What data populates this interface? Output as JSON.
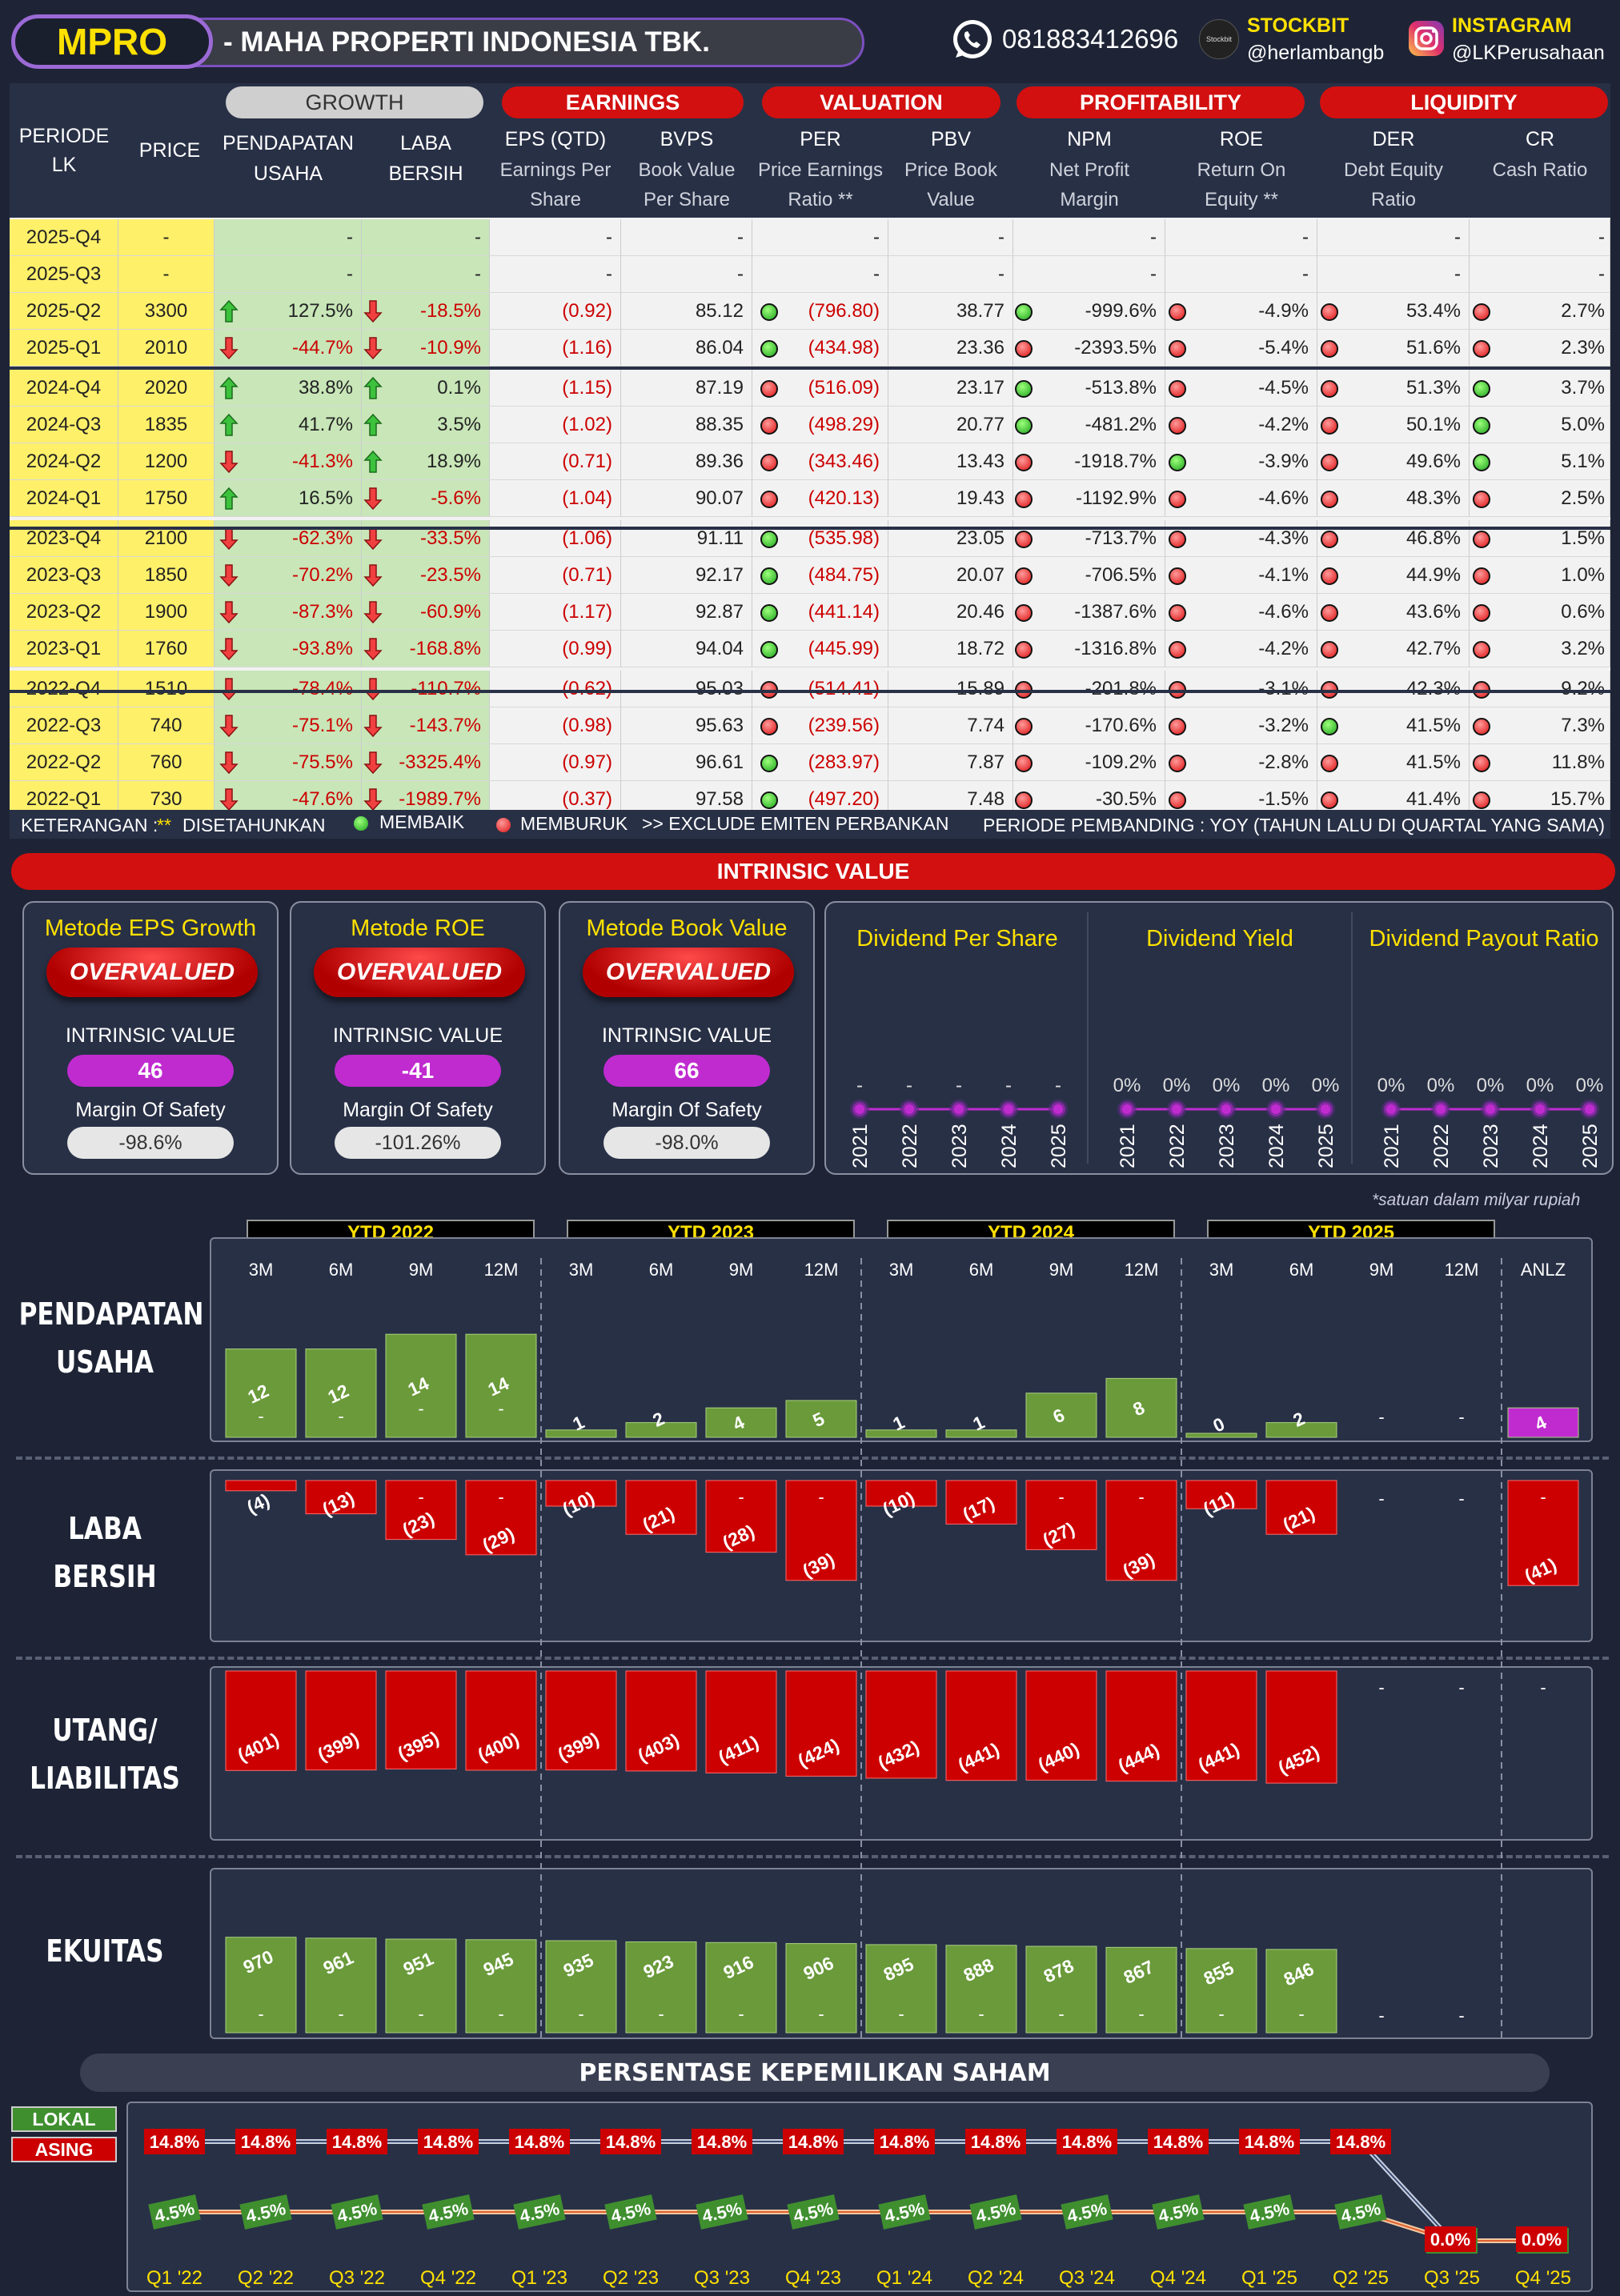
{
  "header": {
    "ticker": "MPRO",
    "company": "-  MAHA PROPERTI INDONESIA TBK.",
    "phone": "081883412696",
    "stockbit_label": "STOCKBIT",
    "stockbit_handle": "@herlambangb",
    "stockbit_logo": "Stockbit",
    "instagram_label": "INSTAGRAM",
    "instagram_handle": "@LKPerusahaan"
  },
  "table": {
    "groups": {
      "growth": "GROWTH",
      "earnings": "EARNINGS",
      "valuation": "VALUATION",
      "profitability": "PROFITABILITY",
      "liquidity": "LIQUIDITY"
    },
    "cols": {
      "periode": "PERIODE\nLK",
      "price": "PRICE",
      "pend": "PENDAPATAN\nUSAHA",
      "laba": "LABA\nBERSIH",
      "eps": "EPS (QTD)",
      "eps_sub": "Earnings Per\nShare",
      "bvps": "BVPS",
      "bvps_sub": "Book Value\nPer Share",
      "per": "PER",
      "per_sub": "Price Earnings\nRatio **",
      "pbv": "PBV",
      "pbv_sub": "Price Book\nValue",
      "npm": "NPM",
      "npm_sub": "Net Profit\nMargin",
      "roe": "ROE",
      "roe_sub": "Return On\nEquity **",
      "der": "DER",
      "der_sub": "Debt Equity\nRatio",
      "cr": "CR",
      "cr_sub": "Cash Ratio"
    },
    "rows": [
      {
        "p": "2025-Q4",
        "price": "-",
        "pend": "-",
        "pa": "",
        "laba": "-",
        "la": "",
        "eps": "-",
        "bvps": "-",
        "bd": "",
        "per": "-",
        "pbv": "-",
        "pd": "",
        "npm": "-",
        "nd": "",
        "roe": "-",
        "rd": "",
        "der": "-",
        "dd": "",
        "cr": "-"
      },
      {
        "p": "2025-Q3",
        "price": "-",
        "pend": "-",
        "pa": "",
        "laba": "-",
        "la": "",
        "eps": "-",
        "bvps": "-",
        "bd": "",
        "per": "-",
        "pbv": "-",
        "pd": "",
        "npm": "-",
        "nd": "",
        "roe": "-",
        "rd": "",
        "der": "-",
        "dd": "",
        "cr": "-"
      },
      {
        "p": "2025-Q2",
        "price": "3300",
        "pend": "127.5%",
        "pa": "up",
        "laba": "-18.5%",
        "la": "down",
        "eps": "(0.92)",
        "bvps": "85.12",
        "bd": "g",
        "per": "(796.80)",
        "pbv": "38.77",
        "pd": "g",
        "npm": "-999.6%",
        "nd": "r",
        "roe": "-4.9%",
        "rd": "r",
        "der": "53.4%",
        "dd": "r",
        "cr": "2.7%"
      },
      {
        "p": "2025-Q1",
        "price": "2010",
        "pend": "-44.7%",
        "pa": "down",
        "laba": "-10.9%",
        "la": "down",
        "eps": "(1.16)",
        "bvps": "86.04",
        "bd": "g",
        "per": "(434.98)",
        "pbv": "23.36",
        "pd": "r",
        "npm": "-2393.5%",
        "nd": "r",
        "roe": "-5.4%",
        "rd": "r",
        "der": "51.6%",
        "dd": "r",
        "cr": "2.3%"
      },
      {
        "p": "2024-Q4",
        "price": "2020",
        "pend": "38.8%",
        "pa": "up",
        "laba": "0.1%",
        "la": "up",
        "eps": "(1.15)",
        "bvps": "87.19",
        "bd": "r",
        "per": "(516.09)",
        "pbv": "23.17",
        "pd": "g",
        "npm": "-513.8%",
        "nd": "r",
        "roe": "-4.5%",
        "rd": "r",
        "der": "51.3%",
        "dd": "g",
        "cr": "3.7%"
      },
      {
        "p": "2024-Q3",
        "price": "1835",
        "pend": "41.7%",
        "pa": "up",
        "laba": "3.5%",
        "la": "up",
        "eps": "(1.02)",
        "bvps": "88.35",
        "bd": "r",
        "per": "(498.29)",
        "pbv": "20.77",
        "pd": "g",
        "npm": "-481.2%",
        "nd": "r",
        "roe": "-4.2%",
        "rd": "r",
        "der": "50.1%",
        "dd": "g",
        "cr": "5.0%"
      },
      {
        "p": "2024-Q2",
        "price": "1200",
        "pend": "-41.3%",
        "pa": "down",
        "laba": "18.9%",
        "la": "up",
        "eps": "(0.71)",
        "bvps": "89.36",
        "bd": "r",
        "per": "(343.46)",
        "pbv": "13.43",
        "pd": "r",
        "npm": "-1918.7%",
        "nd": "g",
        "roe": "-3.9%",
        "rd": "r",
        "der": "49.6%",
        "dd": "g",
        "cr": "5.1%"
      },
      {
        "p": "2024-Q1",
        "price": "1750",
        "pend": "16.5%",
        "pa": "up",
        "laba": "-5.6%",
        "la": "down",
        "eps": "(1.04)",
        "bvps": "90.07",
        "bd": "r",
        "per": "(420.13)",
        "pbv": "19.43",
        "pd": "r",
        "npm": "-1192.9%",
        "nd": "r",
        "roe": "-4.6%",
        "rd": "r",
        "der": "48.3%",
        "dd": "r",
        "cr": "2.5%"
      },
      {
        "p": "2023-Q4",
        "price": "2100",
        "pend": "-62.3%",
        "pa": "down",
        "laba": "-33.5%",
        "la": "down",
        "eps": "(1.06)",
        "bvps": "91.11",
        "bd": "g",
        "per": "(535.98)",
        "pbv": "23.05",
        "pd": "r",
        "npm": "-713.7%",
        "nd": "r",
        "roe": "-4.3%",
        "rd": "r",
        "der": "46.8%",
        "dd": "r",
        "cr": "1.5%"
      },
      {
        "p": "2023-Q3",
        "price": "1850",
        "pend": "-70.2%",
        "pa": "down",
        "laba": "-23.5%",
        "la": "down",
        "eps": "(0.71)",
        "bvps": "92.17",
        "bd": "g",
        "per": "(484.75)",
        "pbv": "20.07",
        "pd": "r",
        "npm": "-706.5%",
        "nd": "r",
        "roe": "-4.1%",
        "rd": "r",
        "der": "44.9%",
        "dd": "r",
        "cr": "1.0%"
      },
      {
        "p": "2023-Q2",
        "price": "1900",
        "pend": "-87.3%",
        "pa": "down",
        "laba": "-60.9%",
        "la": "down",
        "eps": "(1.17)",
        "bvps": "92.87",
        "bd": "g",
        "per": "(441.14)",
        "pbv": "20.46",
        "pd": "r",
        "npm": "-1387.6%",
        "nd": "r",
        "roe": "-4.6%",
        "rd": "r",
        "der": "43.6%",
        "dd": "r",
        "cr": "0.6%"
      },
      {
        "p": "2023-Q1",
        "price": "1760",
        "pend": "-93.8%",
        "pa": "down",
        "laba": "-168.8%",
        "la": "down",
        "eps": "(0.99)",
        "bvps": "94.04",
        "bd": "g",
        "per": "(445.99)",
        "pbv": "18.72",
        "pd": "r",
        "npm": "-1316.8%",
        "nd": "r",
        "roe": "-4.2%",
        "rd": "r",
        "der": "42.7%",
        "dd": "r",
        "cr": "3.2%"
      },
      {
        "p": "2022-Q4",
        "price": "1510",
        "pend": "-78.4%",
        "pa": "down",
        "laba": "-110.7%",
        "la": "down",
        "eps": "(0.62)",
        "bvps": "95.03",
        "bd": "r",
        "per": "(514.41)",
        "pbv": "15.89",
        "pd": "r",
        "npm": "-201.8%",
        "nd": "r",
        "roe": "-3.1%",
        "rd": "r",
        "der": "42.3%",
        "dd": "r",
        "cr": "9.2%"
      },
      {
        "p": "2022-Q3",
        "price": "740",
        "pend": "-75.1%",
        "pa": "down",
        "laba": "-143.7%",
        "la": "down",
        "eps": "(0.98)",
        "bvps": "95.63",
        "bd": "r",
        "per": "(239.56)",
        "pbv": "7.74",
        "pd": "r",
        "npm": "-170.6%",
        "nd": "r",
        "roe": "-3.2%",
        "rd": "g",
        "der": "41.5%",
        "dd": "r",
        "cr": "7.3%"
      },
      {
        "p": "2022-Q2",
        "price": "760",
        "pend": "-75.5%",
        "pa": "down",
        "laba": "-3325.4%",
        "la": "down",
        "eps": "(0.97)",
        "bvps": "96.61",
        "bd": "g",
        "per": "(283.97)",
        "pbv": "7.87",
        "pd": "r",
        "npm": "-109.2%",
        "nd": "r",
        "roe": "-2.8%",
        "rd": "r",
        "der": "41.5%",
        "dd": "r",
        "cr": "11.8%"
      },
      {
        "p": "2022-Q1",
        "price": "730",
        "pend": "-47.6%",
        "pa": "down",
        "laba": "-1989.7%",
        "la": "down",
        "eps": "(0.37)",
        "bvps": "97.58",
        "bd": "g",
        "per": "(497.20)",
        "pbv": "7.48",
        "pd": "r",
        "npm": "-30.5%",
        "nd": "r",
        "roe": "-1.5%",
        "rd": "r",
        "der": "41.4%",
        "dd": "r",
        "cr": "15.7%"
      }
    ]
  },
  "legend": {
    "keterangan": "KETERANGAN :",
    "stars": "**",
    "disetahunkan": "DISETAHUNKAN",
    "membaik": "MEMBAIK",
    "memburuk": "MEMBURUK",
    "exclude": ">> EXCLUDE EMITEN PERBANKAN",
    "pembanding": "PERIODE PEMBANDING : YOY (TAHUN LALU DI QUARTAL YANG SAMA)"
  },
  "intrinsic": {
    "title": "INTRINSIC VALUE",
    "iv_label": "INTRINSIC VALUE",
    "mos_label": "Margin Of Safety",
    "methods": [
      {
        "name": "Metode EPS Growth",
        "status": "OVERVALUED",
        "value": "46",
        "mos": "-98.6%"
      },
      {
        "name": "Metode ROE",
        "status": "OVERVALUED",
        "value": "-41",
        "mos": "-101.26%"
      },
      {
        "name": "Metode Book Value",
        "status": "OVERVALUED",
        "value": "66",
        "mos": "-98.0%"
      }
    ]
  },
  "dividend": {
    "years": [
      "2021",
      "2022",
      "2023",
      "2024",
      "2025"
    ],
    "panels": [
      {
        "title": "Dividend Per Share",
        "values": [
          "-",
          "-",
          "-",
          "-",
          "-"
        ]
      },
      {
        "title": "Dividend Yield",
        "values": [
          "0%",
          "0%",
          "0%",
          "0%",
          "0%"
        ]
      },
      {
        "title": "Dividend Payout Ratio",
        "values": [
          "0%",
          "0%",
          "0%",
          "0%",
          "0%"
        ]
      }
    ]
  },
  "chart_data": {
    "type": "bar",
    "note": "*satuan dalam milyar rupiah",
    "groups": [
      "YTD 2022",
      "YTD 2023",
      "YTD 2024",
      "YTD 2025"
    ],
    "categories": [
      "3M",
      "6M",
      "9M",
      "12M",
      "3M",
      "6M",
      "9M",
      "12M",
      "3M",
      "6M",
      "9M",
      "12M",
      "3M",
      "6M",
      "9M",
      "12M",
      "ANLZ"
    ],
    "series": [
      {
        "name": "PENDAPATAN\nUSAHA",
        "values": [
          12,
          12,
          14,
          14,
          1,
          2,
          4,
          5,
          1,
          1,
          6,
          8,
          0,
          2,
          null,
          null,
          4
        ],
        "labels": [
          "12",
          "12",
          "14",
          "14",
          "1",
          "2",
          "4",
          "5",
          "1",
          "1",
          "6",
          "8",
          "0",
          "2",
          "-",
          "-",
          "4"
        ]
      },
      {
        "name": "LABA\nBERSIH",
        "values": [
          -4,
          -13,
          -23,
          -29,
          -10,
          -21,
          -28,
          -39,
          -10,
          -17,
          -27,
          -39,
          -11,
          -21,
          null,
          null,
          -41
        ],
        "labels": [
          "(4)",
          "(13)",
          "(23)",
          "(29)",
          "(10)",
          "(21)",
          "(28)",
          "(39)",
          "(10)",
          "(17)",
          "(27)",
          "(39)",
          "(11)",
          "(21)",
          "-",
          "-",
          "(41)"
        ]
      },
      {
        "name": "UTANG/\nLIABILITAS",
        "values": [
          401,
          399,
          395,
          400,
          399,
          403,
          411,
          424,
          432,
          441,
          440,
          444,
          441,
          452,
          null,
          null,
          null
        ],
        "labels": [
          "(401)",
          "(399)",
          "(395)",
          "(400)",
          "(399)",
          "(403)",
          "(411)",
          "(424)",
          "(432)",
          "(441)",
          "(440)",
          "(444)",
          "(441)",
          "(452)",
          "-",
          "-",
          "-"
        ]
      },
      {
        "name": "EKUITAS",
        "values": [
          970,
          961,
          951,
          945,
          935,
          923,
          916,
          906,
          895,
          888,
          878,
          867,
          855,
          846,
          null,
          null,
          null
        ],
        "labels": [
          "970",
          "961",
          "951",
          "945",
          "935",
          "923",
          "916",
          "906",
          "895",
          "888",
          "878",
          "867",
          "855",
          "846",
          "-",
          "-",
          ""
        ]
      }
    ]
  },
  "ownership": {
    "title": "PERSENTASE KEPEMILIKAN SAHAM",
    "legend_lokal": "LOKAL",
    "legend_asing": "ASING",
    "x": [
      "Q1 '22",
      "Q2 '22",
      "Q3 '22",
      "Q4 '22",
      "Q1 '23",
      "Q2 '23",
      "Q3 '23",
      "Q4 '23",
      "Q1 '24",
      "Q2 '24",
      "Q3 '24",
      "Q4 '24",
      "Q1 '25",
      "Q2 '25",
      "Q3 '25",
      "Q4 '25"
    ],
    "lokal": [
      4.5,
      4.5,
      4.5,
      4.5,
      4.5,
      4.5,
      4.5,
      4.5,
      4.5,
      4.5,
      4.5,
      4.5,
      4.5,
      4.5,
      0.0,
      0.0
    ],
    "asing": [
      14.8,
      14.8,
      14.8,
      14.8,
      14.8,
      14.8,
      14.8,
      14.8,
      14.8,
      14.8,
      14.8,
      14.8,
      14.8,
      14.8,
      0.0,
      0.0
    ]
  }
}
